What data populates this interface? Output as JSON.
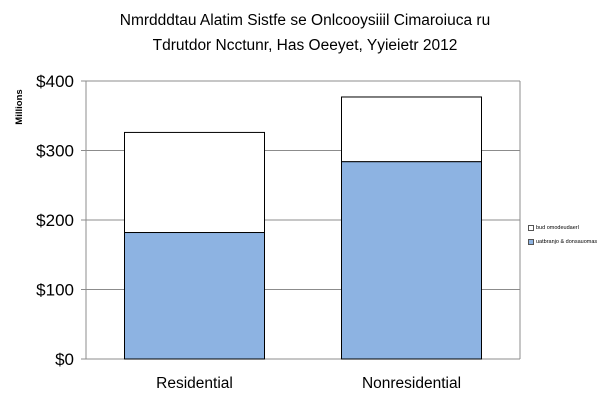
{
  "chart_data": {
    "type": "bar",
    "stacked": true,
    "title_lines": [
      "Nmrdddtau Alatim Sistfe se Onlcooysiiil Cimaroiuca ru",
      "Tdrutdor Ncctunr, Has Oeeyet, Yyieietr 2012"
    ],
    "xlabel": "",
    "ylabel": "Millions",
    "categories": [
      "Residential",
      "Nonresidential"
    ],
    "series": [
      {
        "name": "uatbranjo & donsauomas",
        "color": "#8db3e2",
        "values": [
          182,
          284
        ]
      },
      {
        "name": "bud omodeudaerl",
        "color": "#ffffff",
        "values": [
          144,
          93
        ]
      }
    ],
    "ylim": [
      0,
      400
    ],
    "yticks": [
      0,
      100,
      200,
      300,
      400
    ],
    "ytick_labels": [
      "$0",
      "$100",
      "$200",
      "$300",
      "$400"
    ],
    "grid": true,
    "legend_position": "right"
  }
}
